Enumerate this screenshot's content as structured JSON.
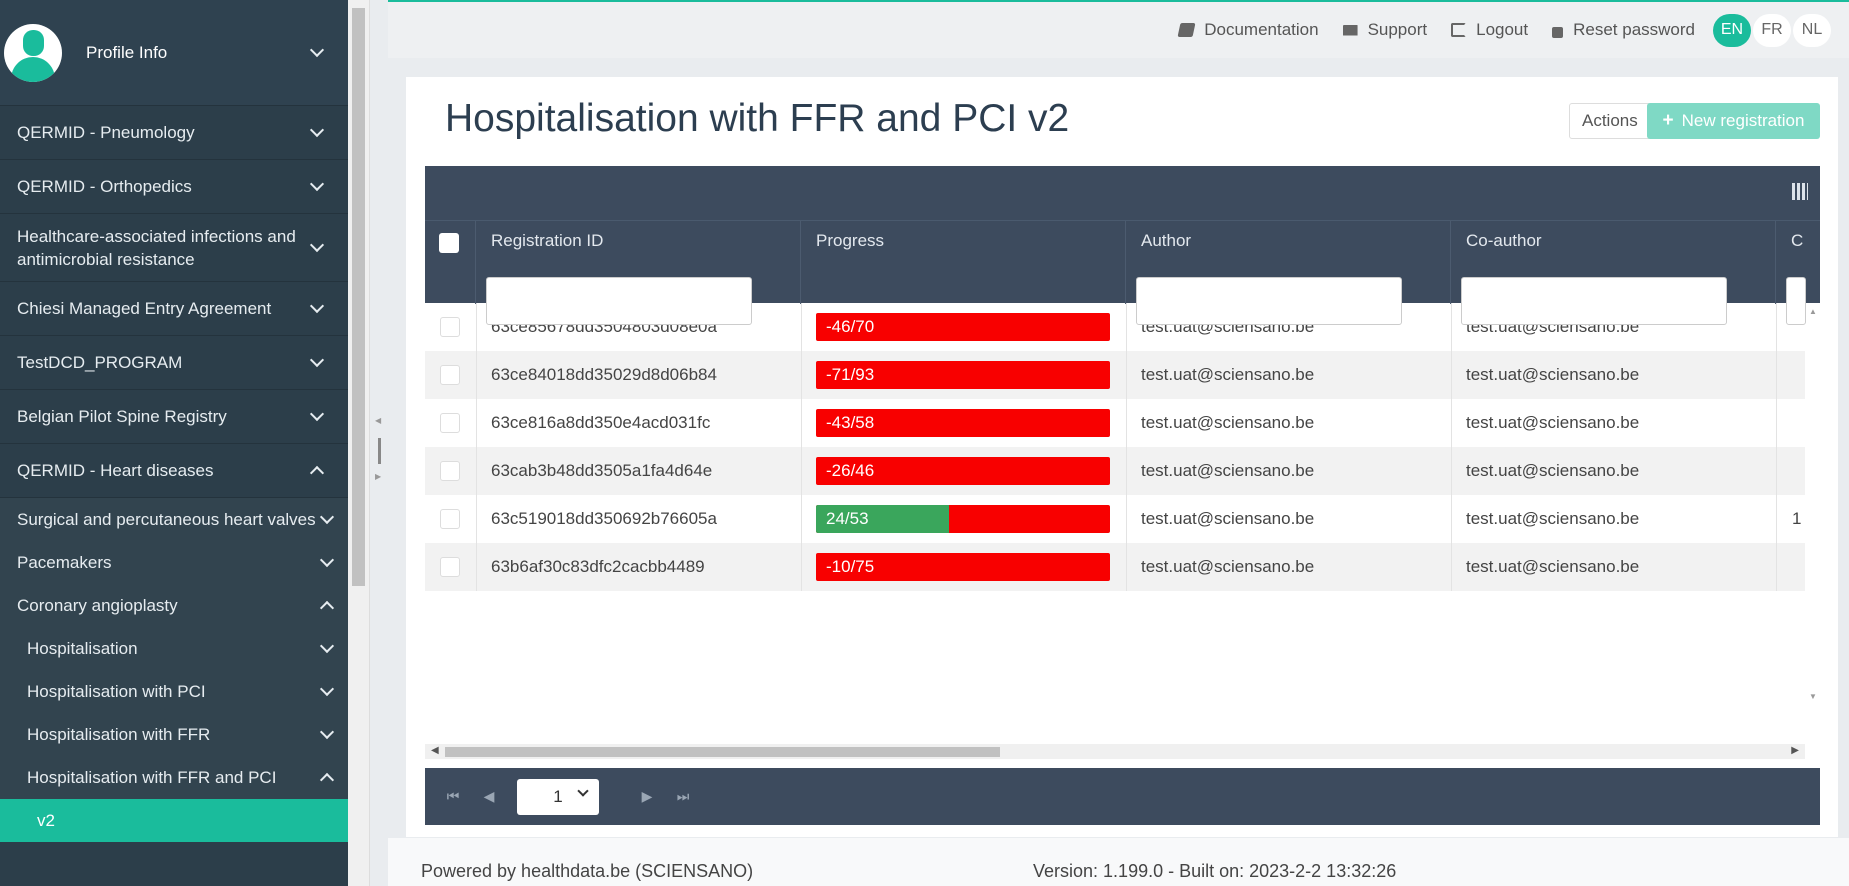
{
  "sidebar": {
    "profile_label": "Profile Info",
    "items": [
      {
        "label": "QERMID - Pneumology"
      },
      {
        "label": "QERMID - Orthopedics"
      },
      {
        "label": "Healthcare-associated infections and antimicrobial resistance"
      },
      {
        "label": "Chiesi Managed Entry Agreement"
      },
      {
        "label": "TestDCD_PROGRAM"
      },
      {
        "label": "Belgian Pilot Spine Registry"
      },
      {
        "label": "QERMID - Heart diseases"
      }
    ],
    "subitems": [
      {
        "label": "Surgical and percutaneous heart valves"
      },
      {
        "label": "Pacemakers"
      },
      {
        "label": "Coronary angioplasty"
      },
      {
        "label": "Hospitalisation"
      },
      {
        "label": "Hospitalisation with PCI"
      },
      {
        "label": "Hospitalisation with FFR"
      },
      {
        "label": "Hospitalisation with FFR and PCI"
      },
      {
        "label": "v2"
      }
    ]
  },
  "topbar": {
    "documentation": "Documentation",
    "support": "Support",
    "logout": "Logout",
    "reset_password": "Reset password",
    "languages": [
      "EN",
      "FR",
      "NL"
    ]
  },
  "page": {
    "title": "Hospitalisation with FFR and PCI v2",
    "actions_label": "Actions",
    "new_registration_label": "New registration"
  },
  "grid": {
    "columns": [
      "Registration ID",
      "Progress",
      "Author",
      "Co-author",
      "C"
    ],
    "rows": [
      {
        "id": "63ce85678dd3504803d08e0a",
        "progress": "-46/70",
        "progress_fraction": 0,
        "author": "test.uat@sciensano.be",
        "coauthor": "test.uat@sciensano.be",
        "extra": ""
      },
      {
        "id": "63ce84018dd35029d8d06b84",
        "progress": "-71/93",
        "progress_fraction": 0,
        "author": "test.uat@sciensano.be",
        "coauthor": "test.uat@sciensano.be",
        "extra": ""
      },
      {
        "id": "63ce816a8dd350e4acd031fc",
        "progress": "-43/58",
        "progress_fraction": 0,
        "author": "test.uat@sciensano.be",
        "coauthor": "test.uat@sciensano.be",
        "extra": ""
      },
      {
        "id": "63cab3b48dd3505a1fa4d64e",
        "progress": "-26/46",
        "progress_fraction": 0,
        "author": "test.uat@sciensano.be",
        "coauthor": "test.uat@sciensano.be",
        "extra": ""
      },
      {
        "id": "63c519018dd350692b76605a",
        "progress": "24/53",
        "progress_fraction": 0.453,
        "author": "test.uat@sciensano.be",
        "coauthor": "test.uat@sciensano.be",
        "extra": "1"
      },
      {
        "id": "63b6af30c83dfc2cacbb4489",
        "progress": "-10/75",
        "progress_fraction": 0,
        "author": "test.uat@sciensano.be",
        "coauthor": "test.uat@sciensano.be",
        "extra": ""
      }
    ],
    "page_value": "1",
    "colors": {
      "progress_done": "#3aa65c",
      "progress_remaining": "#f80000"
    }
  },
  "footer": {
    "powered_by": "Powered by healthdata.be (SCIENSANO)",
    "version": "Version: 1.199.0 - Built on: 2023-2-2 13:32:26"
  }
}
